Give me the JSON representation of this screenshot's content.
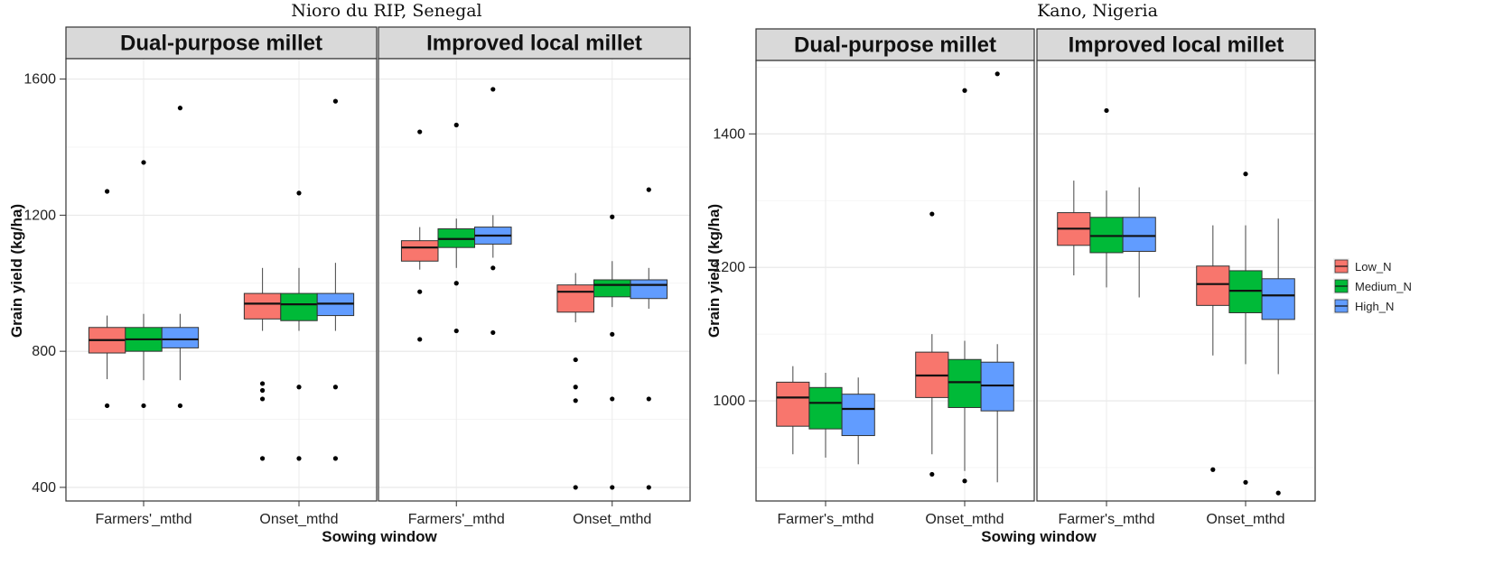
{
  "figure": {
    "legend": {
      "entries": [
        {
          "label": "Low_N",
          "color": "#F8766D"
        },
        {
          "label": "Medium_N",
          "color": "#00BA38"
        },
        {
          "label": "High_N",
          "color": "#619CFF"
        }
      ]
    }
  },
  "chart_data": [
    {
      "type": "box",
      "title": "Nioro du RIP, Senegal",
      "xlabel": "Sowing window",
      "ylabel": "Grain yield (kg/ha)",
      "ylim": [
        360,
        1660
      ],
      "yticks": [
        400,
        800,
        1200,
        1600
      ],
      "categories": [
        "Farmers'_mthd",
        "Onset_mthd"
      ],
      "groups": [
        "Low_N",
        "Medium_N",
        "High_N"
      ],
      "facets": [
        {
          "label": "Dual-purpose millet",
          "boxes": [
            [
              {
                "q1": 795,
                "median": 833,
                "q3": 870,
                "lo": 718,
                "hi": 905,
                "outliers": [
                  640,
                  1270
                ]
              },
              {
                "q1": 800,
                "median": 835,
                "q3": 870,
                "lo": 715,
                "hi": 910,
                "outliers": [
                  640,
                  1355
                ]
              },
              {
                "q1": 810,
                "median": 835,
                "q3": 870,
                "lo": 715,
                "hi": 910,
                "outliers": [
                  640,
                  1515
                ]
              }
            ],
            [
              {
                "q1": 895,
                "median": 940,
                "q3": 970,
                "lo": 860,
                "hi": 1045,
                "outliers": [
                  485,
                  660,
                  685,
                  705
                ]
              },
              {
                "q1": 890,
                "median": 938,
                "q3": 970,
                "lo": 860,
                "hi": 1045,
                "outliers": [
                  485,
                  695,
                  1265
                ]
              },
              {
                "q1": 905,
                "median": 940,
                "q3": 970,
                "lo": 860,
                "hi": 1060,
                "outliers": [
                  485,
                  695,
                  1535
                ]
              }
            ]
          ]
        },
        {
          "label": "Improved local millet",
          "boxes": [
            [
              {
                "q1": 1065,
                "median": 1105,
                "q3": 1125,
                "lo": 1040,
                "hi": 1165,
                "outliers": [
                  835,
                  975,
                  1445
                ]
              },
              {
                "q1": 1105,
                "median": 1130,
                "q3": 1160,
                "lo": 1045,
                "hi": 1190,
                "outliers": [
                  860,
                  1000,
                  1465
                ]
              },
              {
                "q1": 1115,
                "median": 1140,
                "q3": 1165,
                "lo": 1075,
                "hi": 1200,
                "outliers": [
                  855,
                  1045,
                  1570
                ]
              }
            ],
            [
              {
                "q1": 915,
                "median": 975,
                "q3": 995,
                "lo": 885,
                "hi": 1030,
                "outliers": [
                  400,
                  655,
                  695,
                  775
                ]
              },
              {
                "q1": 960,
                "median": 995,
                "q3": 1010,
                "lo": 930,
                "hi": 1065,
                "outliers": [
                  400,
                  660,
                  850,
                  1195
                ]
              },
              {
                "q1": 955,
                "median": 995,
                "q3": 1010,
                "lo": 925,
                "hi": 1045,
                "outliers": [
                  400,
                  660,
                  1275
                ]
              }
            ]
          ]
        }
      ]
    },
    {
      "type": "box",
      "title": "Kano, Nigeria",
      "xlabel": "Sowing window",
      "ylabel": "Grain yield (kg/ha)",
      "ylim": [
        850,
        1510
      ],
      "yticks": [
        1000,
        1200,
        1400
      ],
      "categories": [
        "Farmer's_mthd",
        "Onset_mthd"
      ],
      "groups": [
        "Low_N",
        "Medium_N",
        "High_N"
      ],
      "facets": [
        {
          "label": "Dual-purpose millet",
          "boxes": [
            [
              {
                "q1": 962,
                "median": 1005,
                "q3": 1028,
                "lo": 920,
                "hi": 1052,
                "outliers": []
              },
              {
                "q1": 958,
                "median": 997,
                "q3": 1020,
                "lo": 915,
                "hi": 1042,
                "outliers": []
              },
              {
                "q1": 948,
                "median": 988,
                "q3": 1010,
                "lo": 905,
                "hi": 1035,
                "outliers": []
              }
            ],
            [
              {
                "q1": 1005,
                "median": 1038,
                "q3": 1073,
                "lo": 920,
                "hi": 1100,
                "outliers": [
                  890,
                  1280
                ]
              },
              {
                "q1": 990,
                "median": 1028,
                "q3": 1062,
                "lo": 895,
                "hi": 1090,
                "outliers": [
                  880,
                  1465
                ]
              },
              {
                "q1": 985,
                "median": 1023,
                "q3": 1058,
                "lo": 878,
                "hi": 1085,
                "outliers": [
                  1490
                ]
              }
            ]
          ]
        },
        {
          "label": "Improved local millet",
          "boxes": [
            [
              {
                "q1": 1233,
                "median": 1258,
                "q3": 1282,
                "lo": 1188,
                "hi": 1330,
                "outliers": []
              },
              {
                "q1": 1222,
                "median": 1247,
                "q3": 1275,
                "lo": 1170,
                "hi": 1315,
                "outliers": [
                  1435
                ]
              },
              {
                "q1": 1224,
                "median": 1247,
                "q3": 1275,
                "lo": 1155,
                "hi": 1320,
                "outliers": []
              }
            ],
            [
              {
                "q1": 1143,
                "median": 1175,
                "q3": 1202,
                "lo": 1068,
                "hi": 1263,
                "outliers": [
                  897
                ]
              },
              {
                "q1": 1132,
                "median": 1165,
                "q3": 1195,
                "lo": 1055,
                "hi": 1263,
                "outliers": [
                  878,
                  1340
                ]
              },
              {
                "q1": 1122,
                "median": 1158,
                "q3": 1183,
                "lo": 1040,
                "hi": 1273,
                "outliers": [
                  862
                ]
              }
            ]
          ]
        }
      ]
    }
  ]
}
